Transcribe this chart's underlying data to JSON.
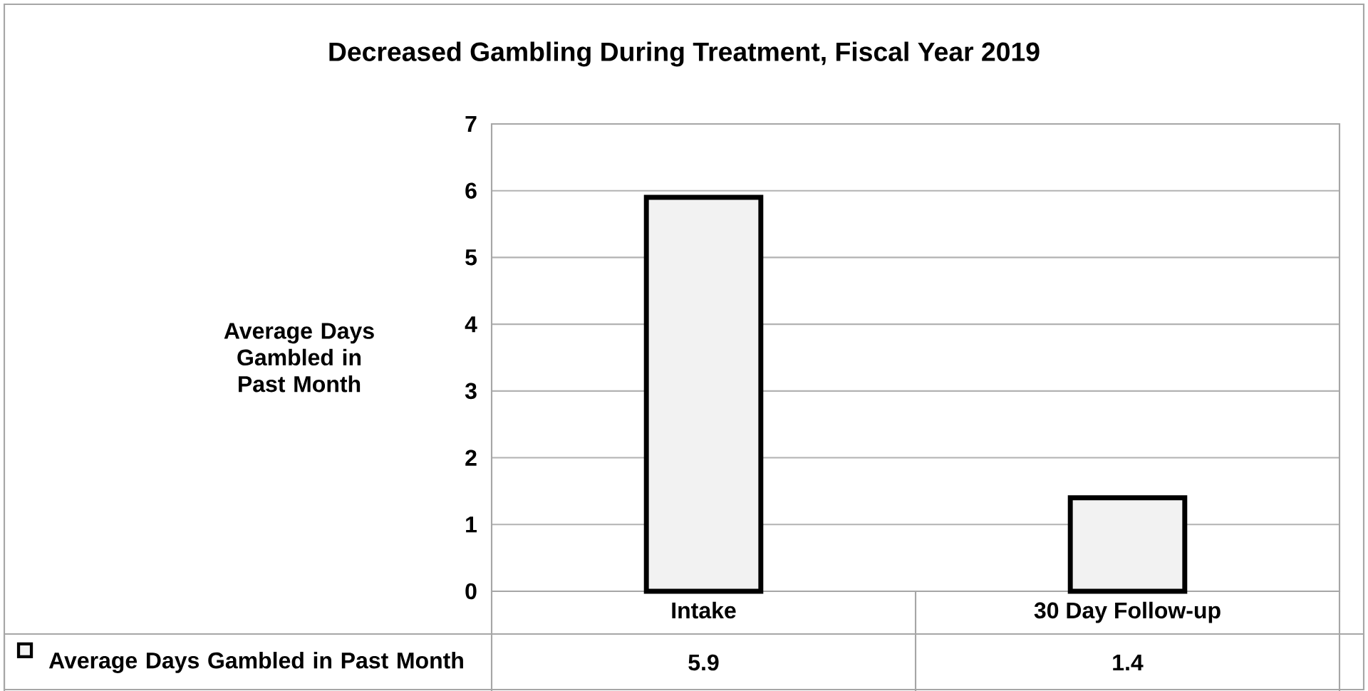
{
  "chart_data": {
    "type": "bar",
    "title": "Decreased Gambling During Treatment, Fiscal Year 2019",
    "ylabel": "Average Days Gambled in Past Month",
    "categories": [
      "Intake",
      "30 Day Follow-up"
    ],
    "series": [
      {
        "name": "Average Days Gambled in Past Month",
        "color": "#f2f2f2",
        "values": [
          5.9,
          1.4
        ]
      }
    ],
    "ylim": [
      0,
      7
    ],
    "yticks": [
      0,
      1,
      2,
      3,
      4,
      5,
      6,
      7
    ],
    "grid": "y",
    "data_labels": true,
    "legend": "bottom"
  }
}
